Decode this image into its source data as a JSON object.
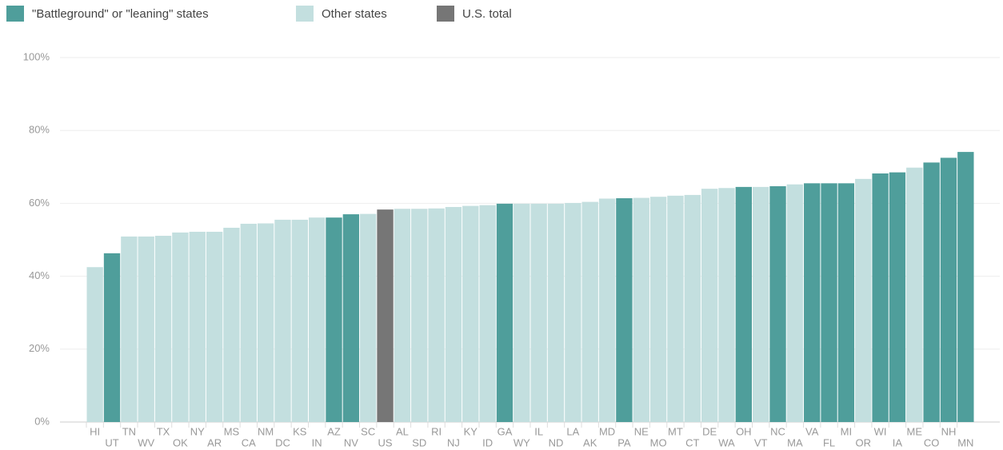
{
  "chart_data": {
    "type": "bar",
    "categories": [
      "HI",
      "UT",
      "TN",
      "WV",
      "TX",
      "OK",
      "NY",
      "AR",
      "MS",
      "CA",
      "NM",
      "DC",
      "KS",
      "IN",
      "AZ",
      "NV",
      "SC",
      "US",
      "AL",
      "SD",
      "RI",
      "NJ",
      "KY",
      "ID",
      "GA",
      "WY",
      "IL",
      "ND",
      "LA",
      "AK",
      "MD",
      "PA",
      "NE",
      "MO",
      "MT",
      "CT",
      "DE",
      "WA",
      "OH",
      "VT",
      "NC",
      "MA",
      "VA",
      "FL",
      "MI",
      "OR",
      "WI",
      "IA",
      "ME",
      "CO",
      "NH",
      "MN"
    ],
    "series": [
      {
        "name": "\"Battleground\" or \"leaning\" states",
        "color": "#4f9e9b",
        "values": [
          null,
          46.3,
          null,
          null,
          null,
          null,
          null,
          null,
          null,
          null,
          null,
          null,
          null,
          null,
          56.1,
          57.0,
          null,
          null,
          null,
          null,
          null,
          null,
          null,
          null,
          59.9,
          null,
          null,
          null,
          null,
          null,
          null,
          61.4,
          null,
          null,
          null,
          null,
          null,
          null,
          64.5,
          null,
          64.7,
          null,
          65.5,
          65.5,
          65.5,
          null,
          68.2,
          68.5,
          null,
          71.2,
          72.5,
          74.1
        ]
      },
      {
        "name": "Other states",
        "color": "#c3dfdf",
        "values": [
          42.5,
          null,
          50.9,
          50.9,
          51.1,
          52.0,
          52.2,
          52.2,
          53.3,
          54.4,
          54.5,
          55.5,
          55.5,
          56.1,
          null,
          null,
          57.1,
          null,
          58.5,
          58.5,
          58.6,
          59.0,
          59.3,
          59.5,
          null,
          59.9,
          59.9,
          59.9,
          60.1,
          60.4,
          61.3,
          null,
          61.5,
          61.8,
          62.1,
          62.3,
          64.0,
          64.2,
          null,
          64.5,
          null,
          65.2,
          null,
          null,
          null,
          66.7,
          null,
          null,
          69.8,
          null,
          null,
          null
        ]
      },
      {
        "name": "U.S. total",
        "color": "#767676",
        "values": [
          null,
          null,
          null,
          null,
          null,
          null,
          null,
          null,
          null,
          null,
          null,
          null,
          null,
          null,
          null,
          null,
          null,
          58.3,
          null,
          null,
          null,
          null,
          null,
          null,
          null,
          null,
          null,
          null,
          null,
          null,
          null,
          null,
          null,
          null,
          null,
          null,
          null,
          null,
          null,
          null,
          null,
          null,
          null,
          null,
          null,
          null,
          null,
          null,
          null,
          null,
          null,
          null
        ]
      }
    ],
    "ylim": [
      0,
      100
    ],
    "yticks": [
      {
        "value": 0,
        "label": "0%"
      },
      {
        "value": 20,
        "label": "20%"
      },
      {
        "value": 40,
        "label": "40%"
      },
      {
        "value": 60,
        "label": "60%"
      },
      {
        "value": 80,
        "label": "80%"
      },
      {
        "value": 100,
        "label": "100%"
      }
    ],
    "grid": true,
    "legend": "top-left"
  }
}
